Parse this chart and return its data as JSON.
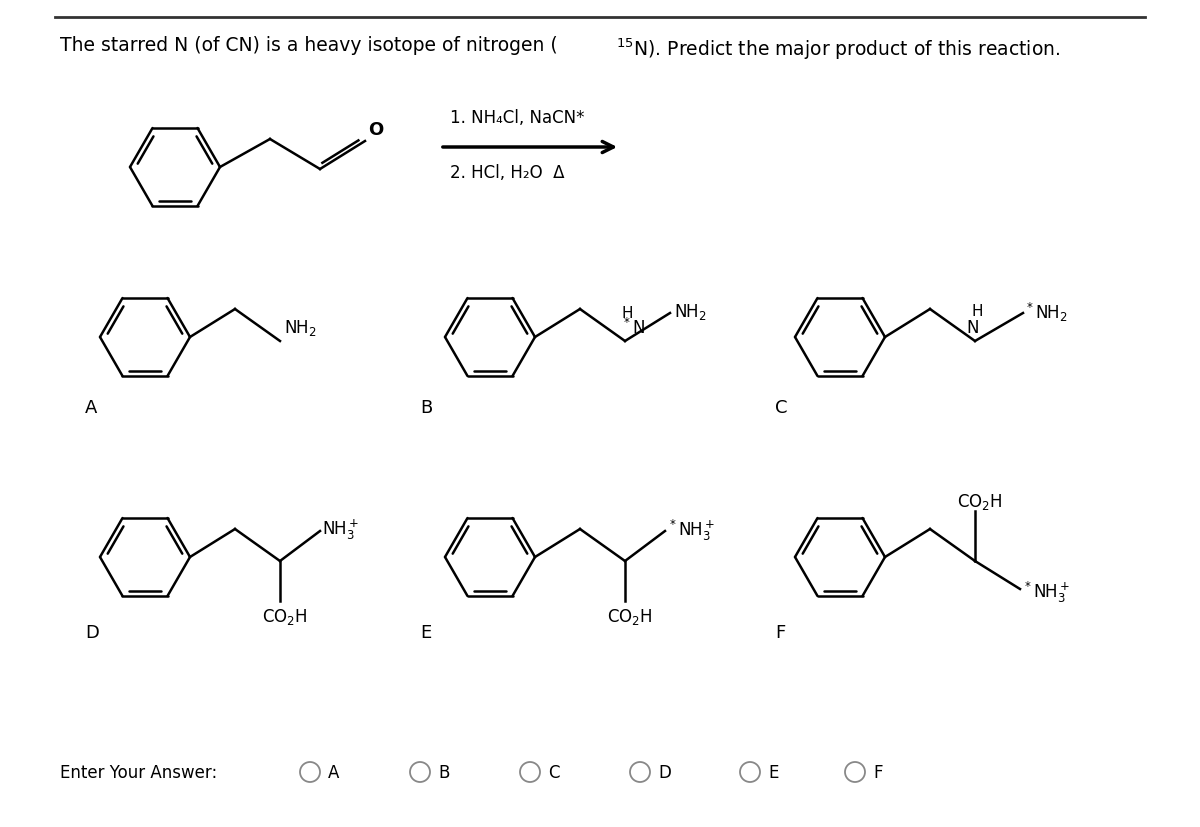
{
  "background": "#ffffff",
  "border_color": "#333333",
  "title_normal": "The starred N (of CN) is a heavy isotope of nitrogen (",
  "title_super": "15",
  "title_after": "N). Predict the major product of this reaction.",
  "step1": "1. NH₄Cl, NaCN*",
  "step2": "2. HCl, H₂O  Δ",
  "answer_label": "Enter Your Answer:",
  "answer_choices": [
    "A",
    "B",
    "C",
    "D",
    "E",
    "F"
  ]
}
